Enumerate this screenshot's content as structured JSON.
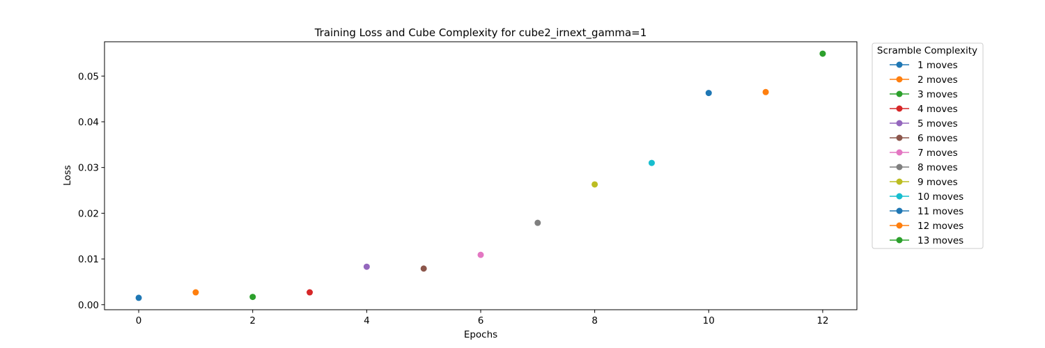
{
  "chart_data": {
    "type": "scatter",
    "title": "Training Loss and Cube Complexity for cube2_irnext_gamma=1",
    "xlabel": "Epochs",
    "ylabel": "Loss",
    "xlim": [
      -0.6,
      12.6
    ],
    "ylim": [
      -0.0011,
      0.0575
    ],
    "xticks": [
      0,
      2,
      4,
      6,
      8,
      10,
      12
    ],
    "xtick_labels": [
      "0",
      "2",
      "4",
      "6",
      "8",
      "10",
      "12"
    ],
    "yticks": [
      0,
      0.01,
      0.02,
      0.03,
      0.04,
      0.05
    ],
    "ytick_labels": [
      "0.00",
      "0.01",
      "0.02",
      "0.03",
      "0.04",
      "0.05"
    ],
    "grid": false,
    "legend": {
      "title": "Scramble Complexity",
      "placement": "outside-right-top"
    },
    "series": [
      {
        "name": "1 moves",
        "color": "#1f77b4",
        "x": [
          0
        ],
        "y": [
          0.0015
        ]
      },
      {
        "name": "2 moves",
        "color": "#ff7f0e",
        "x": [
          1
        ],
        "y": [
          0.0027
        ]
      },
      {
        "name": "3 moves",
        "color": "#2ca02c",
        "x": [
          2
        ],
        "y": [
          0.0017
        ]
      },
      {
        "name": "4 moves",
        "color": "#d62728",
        "x": [
          3
        ],
        "y": [
          0.0027
        ]
      },
      {
        "name": "5 moves",
        "color": "#9467bd",
        "x": [
          4
        ],
        "y": [
          0.0083
        ]
      },
      {
        "name": "6 moves",
        "color": "#8c564b",
        "x": [
          5
        ],
        "y": [
          0.0079
        ]
      },
      {
        "name": "7 moves",
        "color": "#e377c2",
        "x": [
          6
        ],
        "y": [
          0.0109
        ]
      },
      {
        "name": "8 moves",
        "color": "#7f7f7f",
        "x": [
          7
        ],
        "y": [
          0.0179
        ]
      },
      {
        "name": "9 moves",
        "color": "#bcbd22",
        "x": [
          8
        ],
        "y": [
          0.0263
        ]
      },
      {
        "name": "10 moves",
        "color": "#17becf",
        "x": [
          9
        ],
        "y": [
          0.031
        ]
      },
      {
        "name": "11 moves",
        "color": "#1f77b4",
        "x": [
          10
        ],
        "y": [
          0.0463
        ]
      },
      {
        "name": "12 moves",
        "color": "#ff7f0e",
        "x": [
          11
        ],
        "y": [
          0.0465
        ]
      },
      {
        "name": "13 moves",
        "color": "#2ca02c",
        "x": [
          12
        ],
        "y": [
          0.0549
        ]
      }
    ]
  }
}
